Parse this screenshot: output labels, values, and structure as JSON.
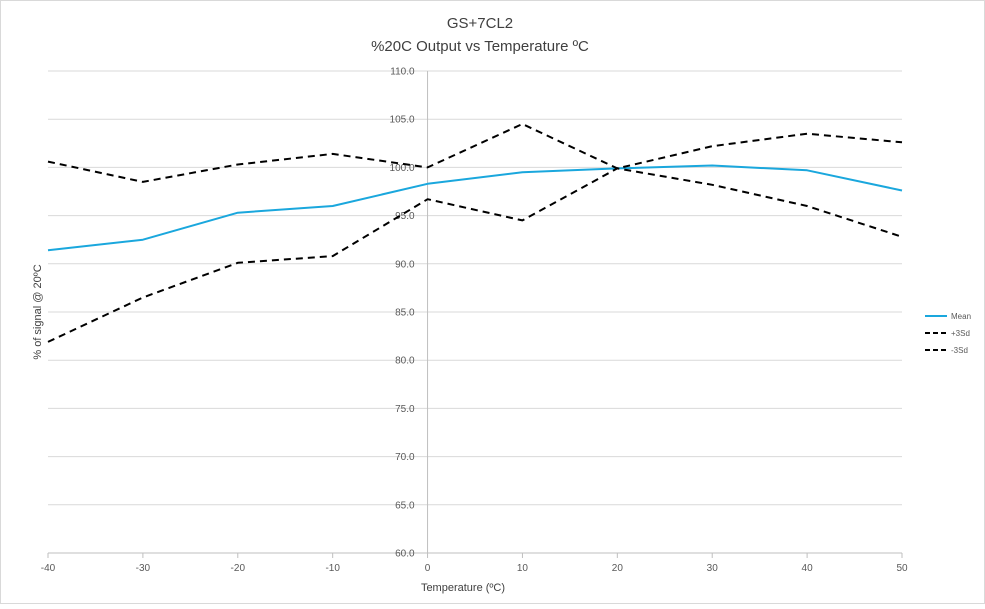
{
  "chart_data": {
    "type": "line",
    "title_line1": "GS+7CL2",
    "title_line2": "%20C Output vs Temperature ºC",
    "xlabel": "Temperature (ºC)",
    "ylabel": "% of signal @ 20ºC",
    "x": [
      -40,
      -30,
      -20,
      -10,
      0,
      10,
      20,
      30,
      40,
      50
    ],
    "xlim": [
      -40,
      50
    ],
    "ylim": [
      60,
      110
    ],
    "x_ticks": [
      "-40",
      "-30",
      "-20",
      "-10",
      "0",
      "10",
      "20",
      "30",
      "40",
      "50"
    ],
    "y_ticks": [
      "60.0",
      "65.0",
      "70.0",
      "75.0",
      "80.0",
      "85.0",
      "90.0",
      "95.0",
      "100.0",
      "105.0",
      "110.0"
    ],
    "grid": "horizontal",
    "legend_position": "right",
    "series": [
      {
        "name": "Mean",
        "color": "#1aa7dd",
        "dash": "solid",
        "values": [
          91.4,
          92.5,
          95.3,
          96.0,
          98.3,
          99.5,
          99.9,
          100.2,
          99.7,
          97.6
        ]
      },
      {
        "name": "+3Sd",
        "color": "#000000",
        "dash": "dashed",
        "values": [
          100.6,
          98.5,
          100.3,
          101.4,
          100.0,
          104.5,
          99.9,
          102.2,
          103.5,
          102.6
        ]
      },
      {
        "name": "-3Sd",
        "color": "#000000",
        "dash": "dashed",
        "values": [
          81.9,
          86.5,
          90.1,
          90.8,
          96.7,
          94.5,
          99.9,
          98.2,
          96.0,
          92.8
        ]
      }
    ]
  }
}
